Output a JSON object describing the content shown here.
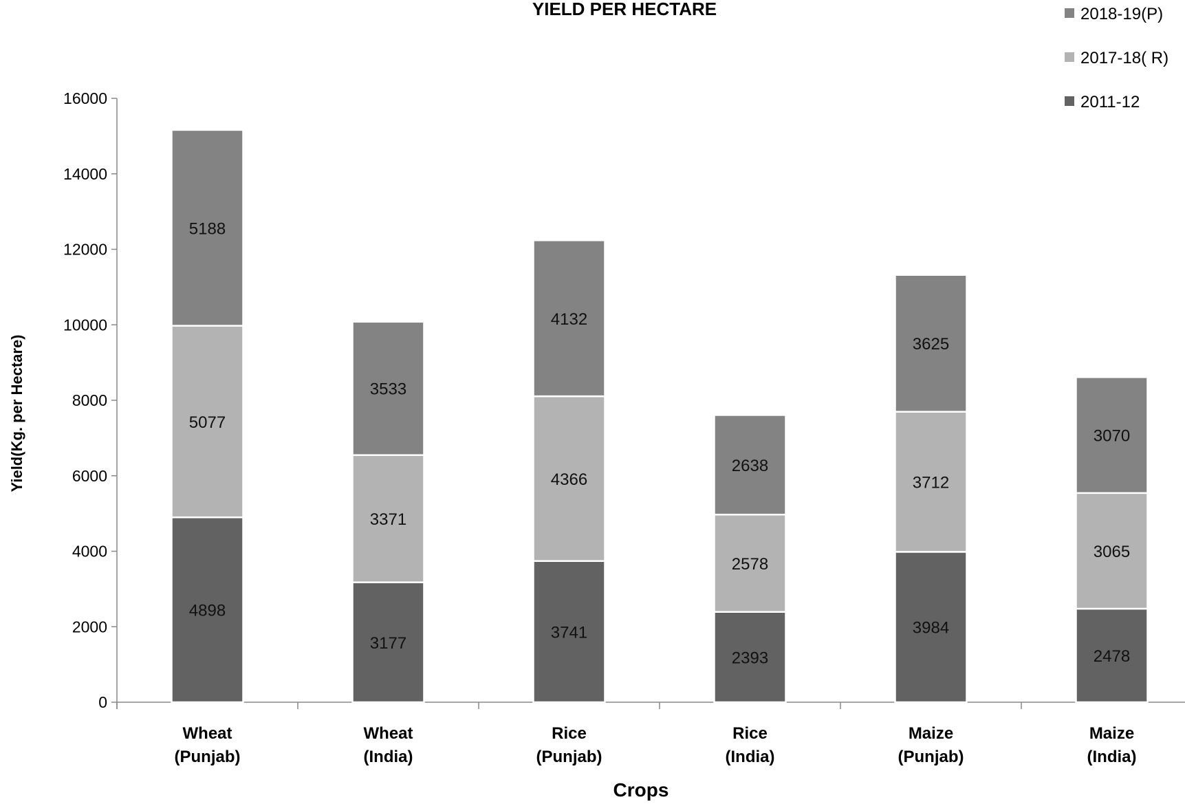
{
  "chart_data": {
    "type": "bar",
    "stacked": true,
    "title": "YIELD PER HECTARE",
    "xlabel": "Crops",
    "ylabel": "Yield(Kg. per Hectare)",
    "ylim": [
      0,
      16000
    ],
    "yticks": [
      0,
      2000,
      4000,
      6000,
      8000,
      10000,
      12000,
      14000,
      16000
    ],
    "categories": [
      [
        "Wheat",
        "(Punjab)"
      ],
      [
        "Wheat",
        "(India)"
      ],
      [
        "Rice",
        "(Punjab)"
      ],
      [
        "Rice",
        "(India)"
      ],
      [
        "Maize",
        "(Punjab)"
      ],
      [
        "Maize",
        "(India)"
      ]
    ],
    "series": [
      {
        "name": "2011-12",
        "color": "#626262",
        "values": [
          4898,
          3177,
          3741,
          2393,
          3984,
          2478
        ]
      },
      {
        "name": "2017-18( R)",
        "color": "#b3b3b3",
        "values": [
          5077,
          3371,
          4366,
          2578,
          3712,
          3065
        ]
      },
      {
        "name": "2018-19(P)",
        "color": "#838383",
        "values": [
          5188,
          3533,
          4132,
          2638,
          3625,
          3070
        ]
      }
    ],
    "legend_order": [
      2,
      1,
      0
    ],
    "legend_position": "top-right",
    "grid": false
  }
}
